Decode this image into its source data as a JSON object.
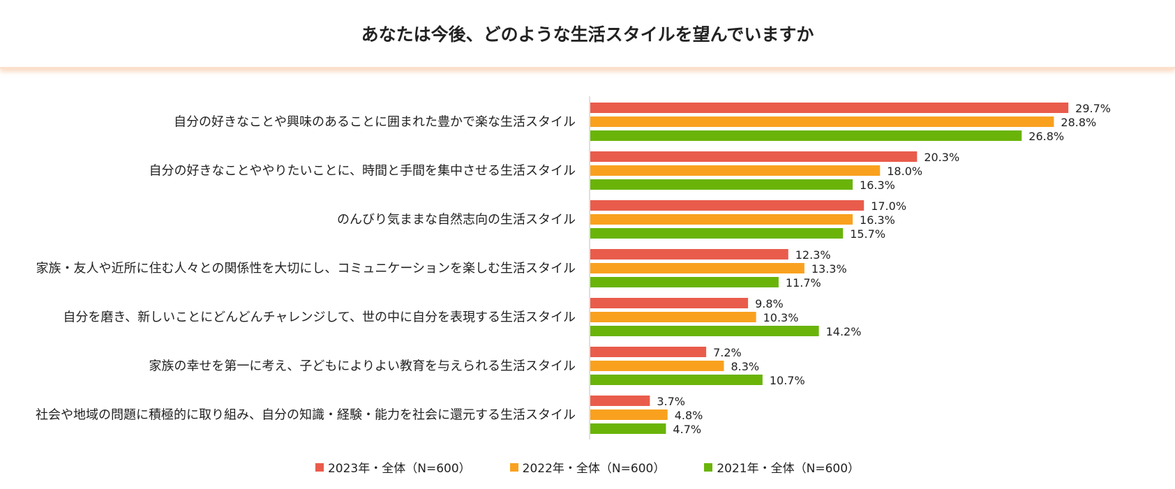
{
  "chart_data": {
    "type": "bar",
    "orientation": "horizontal",
    "title": "あなたは今後、どのような生活スタイルを望んでいますか",
    "categories": [
      "自分の好きなことや興味のあることに囲まれた豊かで楽な生活スタイル",
      "自分の好きなことややりたいことに、時間と手間を集中させる生活スタイル",
      "のんびり気ままな自然志向の生活スタイル",
      "家族・友人や近所に住む人々との関係性を大切にし、コミュニケーションを楽しむ生活スタイル",
      "自分を磨き、新しいことにどんどんチャレンジして、世の中に自分を表現する生活スタイル",
      "家族の幸せを第一に考え、子どもによりよい教育を与えられる生活スタイル",
      "社会や地域の問題に積極的に取り組み、自分の知識・経験・能力を社会に還元する生活スタイル"
    ],
    "series": [
      {
        "name": "2023年・全体（N=600）",
        "color": "#e95c4b",
        "values": [
          29.7,
          20.3,
          17.0,
          12.3,
          9.8,
          7.2,
          3.7
        ]
      },
      {
        "name": "2022年・全体（N=600）",
        "color": "#f9a11f",
        "values": [
          28.8,
          18.0,
          16.3,
          13.3,
          10.3,
          8.3,
          4.8
        ]
      },
      {
        "name": "2021年・全体（N=600）",
        "color": "#6ab40a",
        "values": [
          26.8,
          16.3,
          15.7,
          11.7,
          14.2,
          10.7,
          4.7
        ]
      }
    ],
    "value_suffix": "%",
    "value_decimals": 1,
    "xlim": [
      0,
      30
    ],
    "grid": false,
    "legend_position": "bottom"
  }
}
